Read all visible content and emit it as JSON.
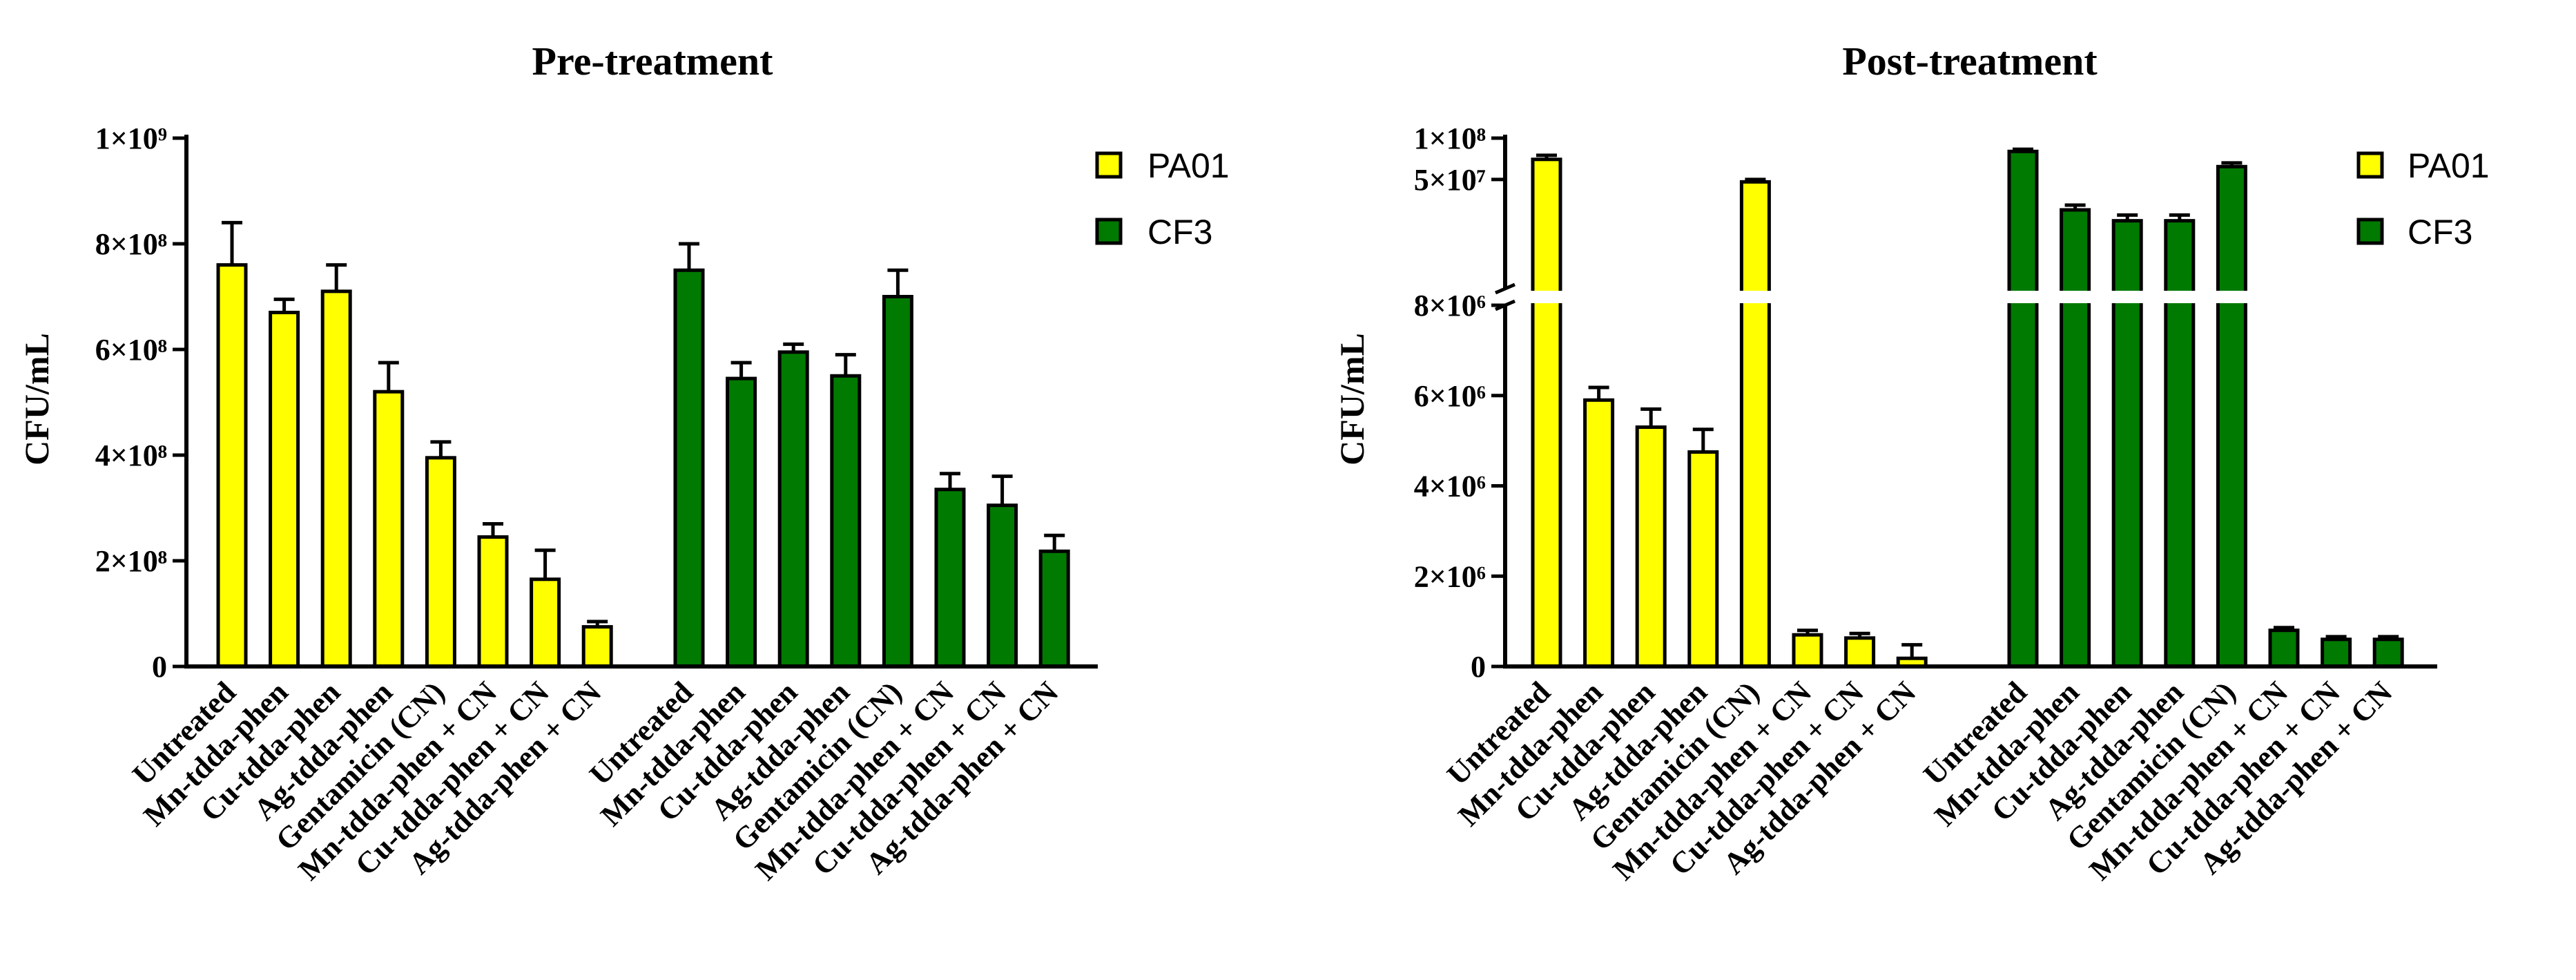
{
  "colors": {
    "PA01": "#ffff00",
    "CF3": "#007a00"
  },
  "chart_data": [
    {
      "type": "bar",
      "title": "Pre-treatment",
      "xlabel": "",
      "ylabel": "CFU/mL",
      "ylim": [
        0,
        1000000000
      ],
      "yticks": [
        {
          "value": 0,
          "label": "0"
        },
        {
          "value": 200000000,
          "label": "2×10⁸"
        },
        {
          "value": 400000000,
          "label": "4×10⁸"
        },
        {
          "value": 600000000,
          "label": "6×10⁸"
        },
        {
          "value": 800000000,
          "label": "8×10⁸"
        },
        {
          "value": 1000000000,
          "label": "1×10⁹"
        }
      ],
      "legend": [
        "PA01",
        "CF3"
      ],
      "legend_position": "top-right",
      "categories": [
        "Untreated",
        "Mn-tdda-phen",
        "Cu-tdda-phen",
        "Ag-tdda-phen",
        "Gentamicin (CN)",
        "Mn-tdda-phen + CN",
        "Cu-tdda-phen + CN",
        "Ag-tdda-phen + CN"
      ],
      "series": [
        {
          "name": "PA01",
          "values": [
            760000000,
            670000000,
            710000000,
            520000000,
            395000000,
            245000000,
            165000000,
            75000000
          ],
          "errors": [
            80000000,
            25000000,
            50000000,
            55000000,
            30000000,
            25000000,
            55000000,
            10000000
          ]
        },
        {
          "name": "CF3",
          "values": [
            750000000,
            545000000,
            595000000,
            550000000,
            700000000,
            335000000,
            305000000,
            218000000
          ],
          "errors": [
            50000000,
            30000000,
            15000000,
            40000000,
            50000000,
            30000000,
            55000000,
            30000000
          ]
        }
      ]
    },
    {
      "type": "bar",
      "title": "Post-treatment",
      "xlabel": "",
      "ylabel": "CFU/mL",
      "axis_break": {
        "at": 8000000,
        "upper_range": [
          8000000,
          100000000
        ],
        "upper_scale": "log"
      },
      "ylim": [
        0,
        100000000
      ],
      "yticks": [
        {
          "value": 0,
          "label": "0"
        },
        {
          "value": 2000000,
          "label": "2×10⁶"
        },
        {
          "value": 4000000,
          "label": "4×10⁶"
        },
        {
          "value": 6000000,
          "label": "6×10⁶"
        },
        {
          "value": 8000000,
          "label": "8×10⁶"
        },
        {
          "value": 50000000,
          "label": "5×10⁷"
        },
        {
          "value": 100000000,
          "label": "1×10⁸"
        }
      ],
      "legend": [
        "PA01",
        "CF3"
      ],
      "legend_position": "top-right",
      "categories": [
        "Untreated",
        "Mn-tdda-phen",
        "Cu-tdda-phen",
        "Ag-tdda-phen",
        "Gentamicin (CN)",
        "Mn-tdda-phen + CN",
        "Cu-tdda-phen + CN",
        "Ag-tdda-phen + CN"
      ],
      "series": [
        {
          "name": "PA01",
          "values": [
            70000000,
            5900000,
            5300000,
            4750000,
            48000000,
            700000,
            630000,
            180000
          ],
          "errors": [
            5000000,
            280000,
            400000,
            500000,
            2000000,
            100000,
            100000,
            300000
          ]
        },
        {
          "name": "CF3",
          "values": [
            80000000,
            30000000,
            25000000,
            25000000,
            62000000,
            800000,
            600000,
            600000
          ],
          "errors": [
            3000000,
            2500000,
            2500000,
            2500000,
            4000000,
            60000,
            60000,
            60000
          ]
        }
      ]
    }
  ]
}
